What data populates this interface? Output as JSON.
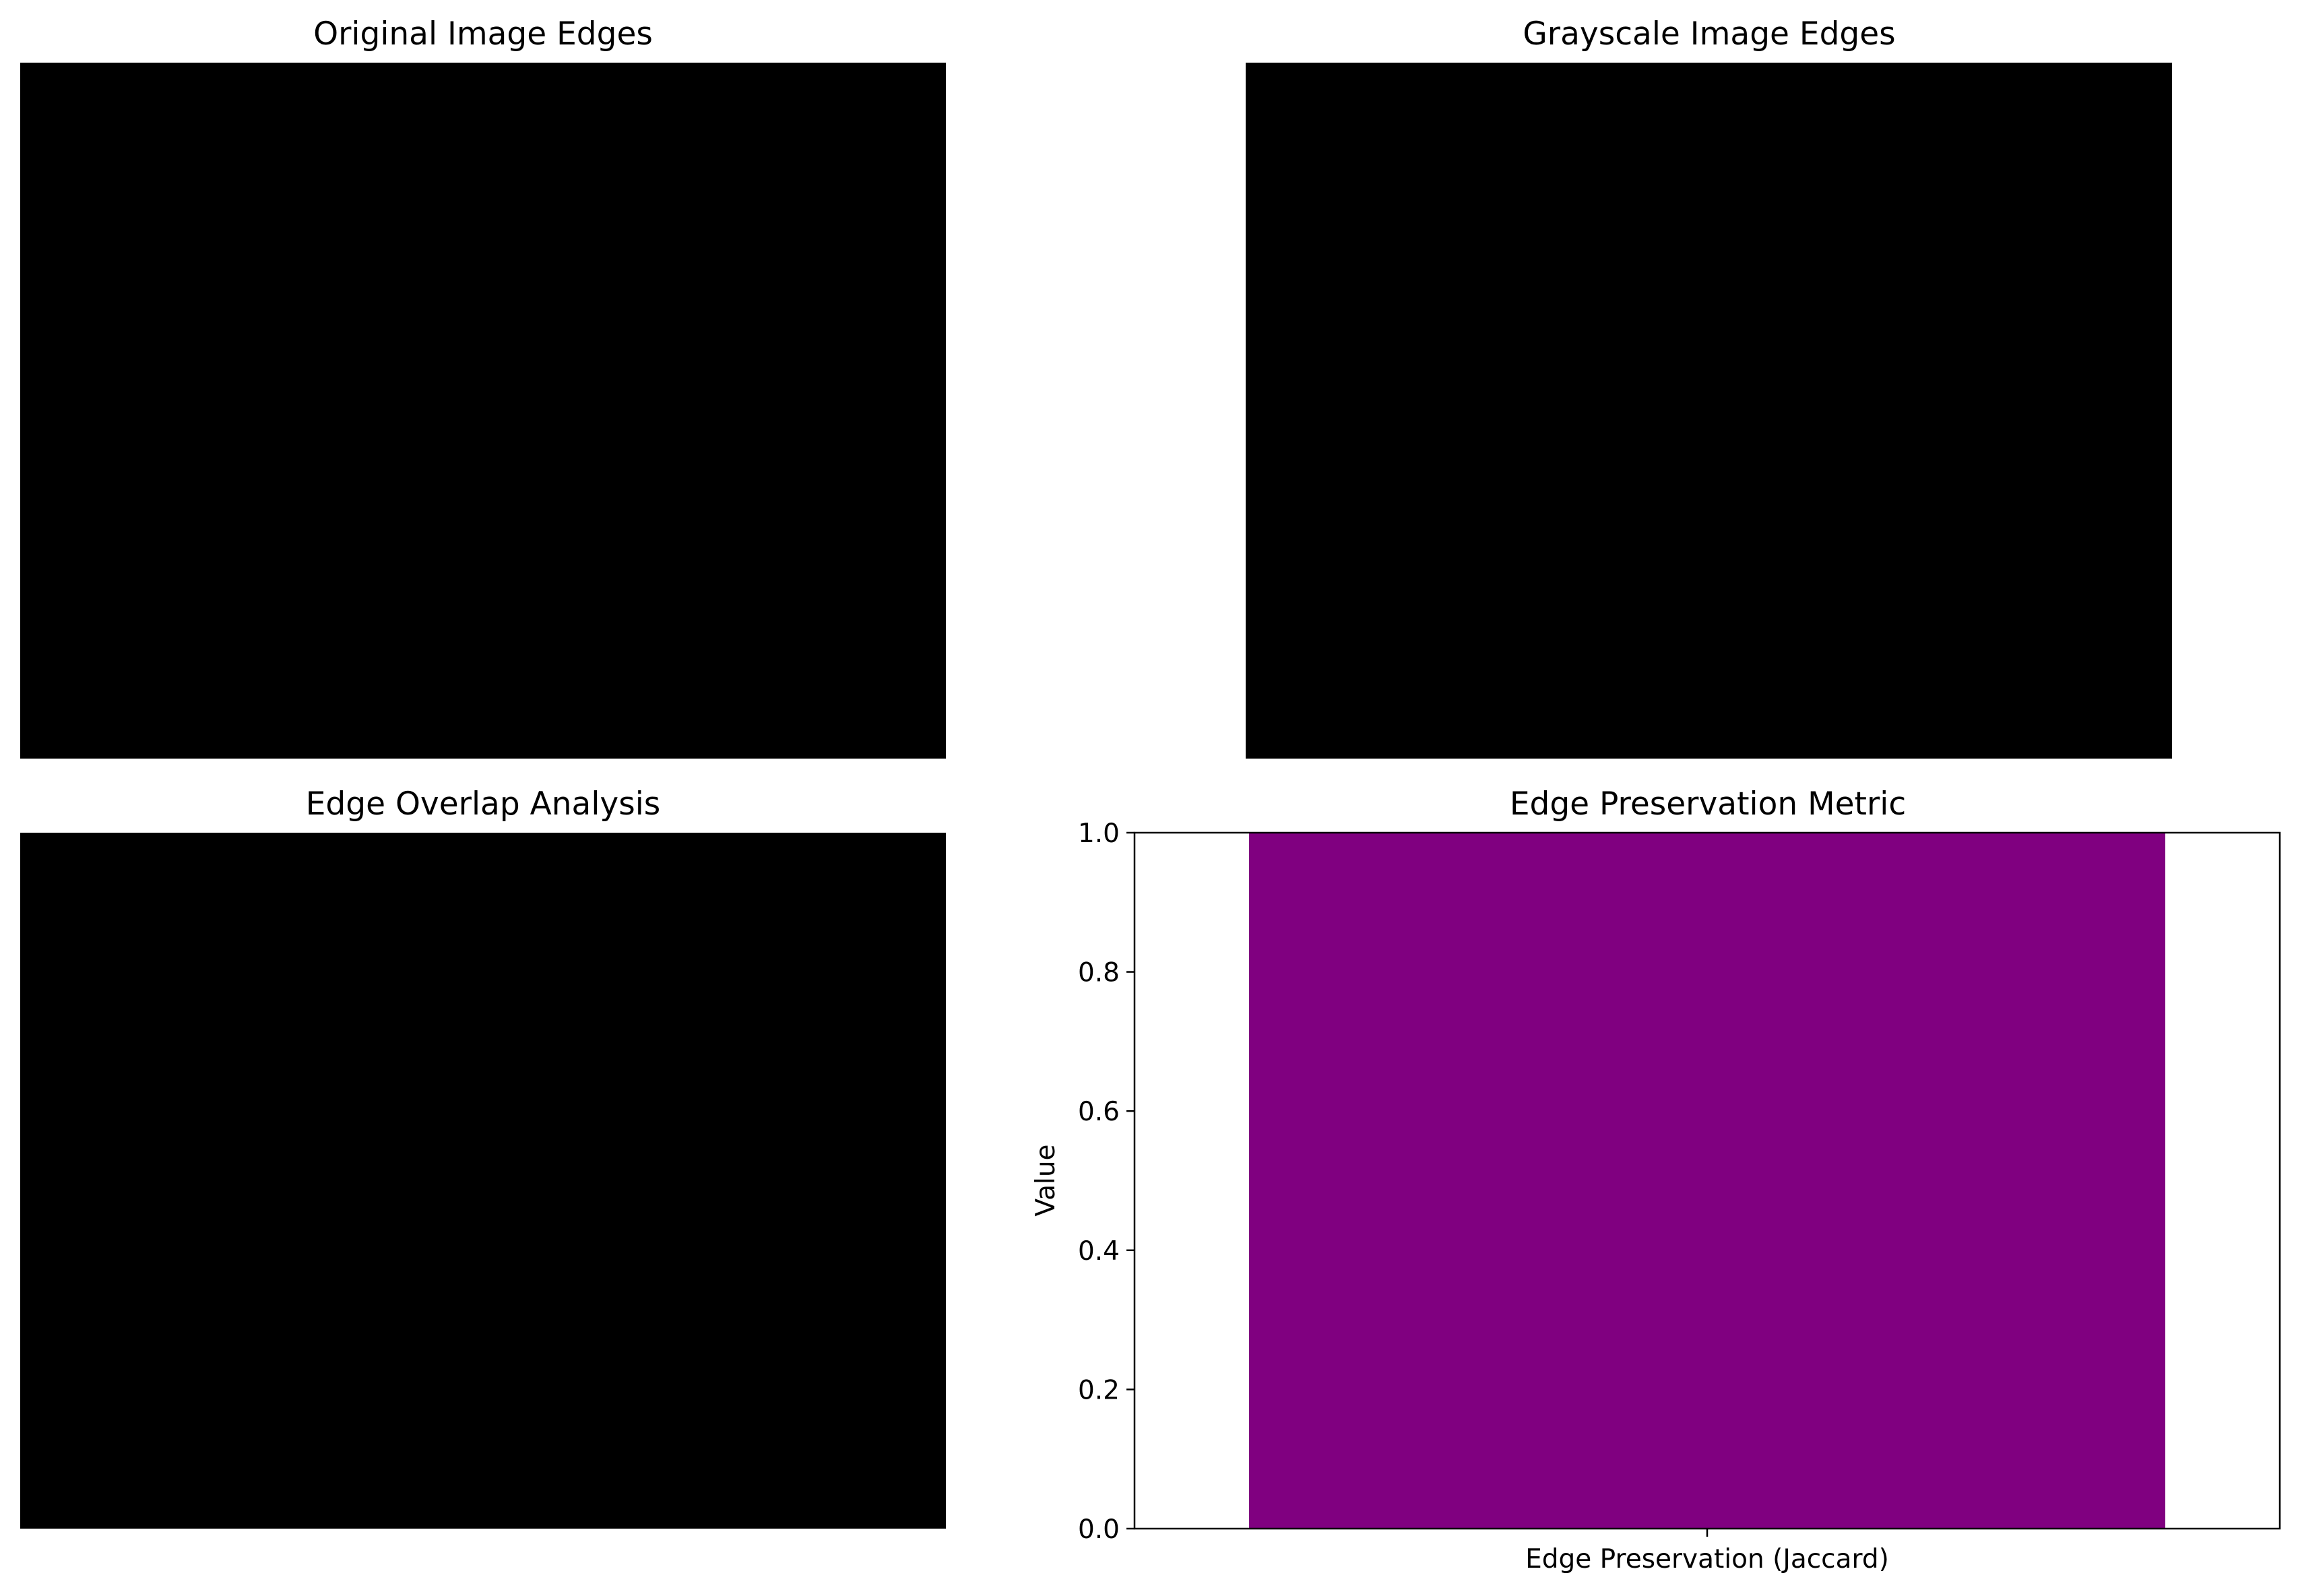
{
  "panels": [
    {
      "title": "Original Image Edges",
      "type": "image",
      "fill_color": "#000000"
    },
    {
      "title": "Grayscale Image Edges",
      "type": "image",
      "fill_color": "#000000"
    },
    {
      "title": "Edge Overlap Analysis",
      "type": "image",
      "fill_color": "#000000"
    }
  ],
  "chart_data": {
    "type": "bar",
    "title": "Edge Preservation Metric",
    "categories": [
      "Edge Preservation (Jaccard)"
    ],
    "values": [
      1.0
    ],
    "ylabel": "Value",
    "xlabel": "",
    "ylim": [
      0,
      1
    ],
    "yticks": [
      "0.0",
      "0.2",
      "0.4",
      "0.6",
      "0.8",
      "1.0"
    ],
    "bar_color": "#800080",
    "grid": false
  }
}
